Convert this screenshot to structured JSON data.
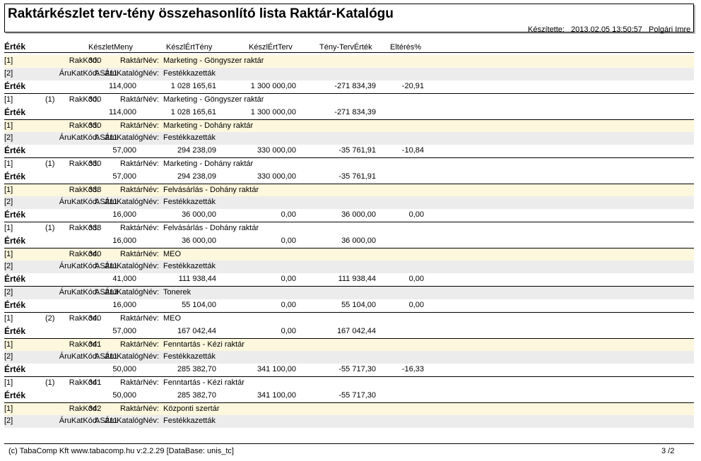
{
  "report": {
    "title": "Raktárkészlet terv-tény összehasonlító lista Raktár-Katalógu",
    "made_label": "Készítette:",
    "made_date": "2013.02.05 13:50:57",
    "made_user": "Polgári Imre"
  },
  "columns": {
    "ertek": "Érték",
    "keszlet_meny": "KészletMeny",
    "keszl_ert_teny": "KészlÉrtTény",
    "keszl_ert_terv": "KészlÉrtTerv",
    "teny_terv_ertek": "Tény-TervÉrték",
    "elteres": "Eltérés%"
  },
  "rows": [
    {
      "kind": "l1",
      "level": "[1]",
      "code_label": "RakKód:",
      "code": "300",
      "name_label": "RaktárNév:",
      "name": "Marketing - Göngyszer raktár"
    },
    {
      "kind": "l2",
      "level": "[2]",
      "code_label": "ÁruKatKód:",
      "code": "AS211",
      "name_label": "ÁruKatalógNév:",
      "name": "Festékkazetták"
    },
    {
      "kind": "val",
      "level": "Érték",
      "v1": "114,000",
      "v2": "1 028 165,61",
      "v3": "1 300 000,00",
      "v4": "-271 834,39",
      "v5": "-20,91"
    },
    {
      "kind": "sum1",
      "level": "[1]",
      "prefix": "(1)",
      "code_label": "RakKód:",
      "code": "300",
      "name_label": "RaktárNév:",
      "name": "Marketing - Göngyszer raktár"
    },
    {
      "kind": "val",
      "level": "Érték",
      "v1": "114,000",
      "v2": "1 028 165,61",
      "v3": "1 300 000,00",
      "v4": "-271 834,39",
      "v5": ""
    },
    {
      "kind": "l1",
      "level": "[1]",
      "code_label": "RakKód:",
      "code": "330",
      "name_label": "RaktárNév:",
      "name": "Marketing - Dohány raktár"
    },
    {
      "kind": "l2",
      "level": "[2]",
      "code_label": "ÁruKatKód:",
      "code": "AS211",
      "name_label": "ÁruKatalógNév:",
      "name": "Festékkazetták"
    },
    {
      "kind": "val",
      "level": "Érték",
      "v1": "57,000",
      "v2": "294 238,09",
      "v3": "330 000,00",
      "v4": "-35 761,91",
      "v5": "-10,84"
    },
    {
      "kind": "sum1",
      "level": "[1]",
      "prefix": "(1)",
      "code_label": "RakKód:",
      "code": "330",
      "name_label": "RaktárNév:",
      "name": "Marketing - Dohány raktár"
    },
    {
      "kind": "val",
      "level": "Érték",
      "v1": "57,000",
      "v2": "294 238,09",
      "v3": "330 000,00",
      "v4": "-35 761,91",
      "v5": ""
    },
    {
      "kind": "l1",
      "level": "[1]",
      "code_label": "RakKód:",
      "code": "338",
      "name_label": "RaktárNév:",
      "name": "Felvásárlás - Dohány raktár"
    },
    {
      "kind": "l2",
      "level": "[2]",
      "code_label": "ÁruKatKód:",
      "code": "AS211",
      "name_label": "ÁruKatalógNév:",
      "name": "Festékkazetták"
    },
    {
      "kind": "val",
      "level": "Érték",
      "v1": "16,000",
      "v2": "36 000,00",
      "v3": "0,00",
      "v4": "36 000,00",
      "v5": "0,00"
    },
    {
      "kind": "sum1",
      "level": "[1]",
      "prefix": "(1)",
      "code_label": "RakKód:",
      "code": "338",
      "name_label": "RaktárNév:",
      "name": "Felvásárlás - Dohány raktár"
    },
    {
      "kind": "val",
      "level": "Érték",
      "v1": "16,000",
      "v2": "36 000,00",
      "v3": "0,00",
      "v4": "36 000,00",
      "v5": ""
    },
    {
      "kind": "l1",
      "level": "[1]",
      "code_label": "RakKód:",
      "code": "340",
      "name_label": "RaktárNév:",
      "name": "MEO"
    },
    {
      "kind": "l2",
      "level": "[2]",
      "code_label": "ÁruKatKód:",
      "code": "AS211",
      "name_label": "ÁruKatalógNév:",
      "name": "Festékkazetták"
    },
    {
      "kind": "val",
      "level": "Érték",
      "v1": "41,000",
      "v2": "111 938,44",
      "v3": "0,00",
      "v4": "111 938,44",
      "v5": "0,00"
    },
    {
      "kind": "l2s",
      "level": "[2]",
      "code_label": "ÁruKatKód:",
      "code": "AS213",
      "name_label": "ÁruKatalógNév:",
      "name": "Tonerek"
    },
    {
      "kind": "val",
      "level": "Érték",
      "v1": "16,000",
      "v2": "55 104,00",
      "v3": "0,00",
      "v4": "55 104,00",
      "v5": "0,00"
    },
    {
      "kind": "sum1",
      "level": "[1]",
      "prefix": "(2)",
      "code_label": "RakKód:",
      "code": "340",
      "name_label": "RaktárNév:",
      "name": "MEO"
    },
    {
      "kind": "val",
      "level": "Érték",
      "v1": "57,000",
      "v2": "167 042,44",
      "v3": "0,00",
      "v4": "167 042,44",
      "v5": ""
    },
    {
      "kind": "l1",
      "level": "[1]",
      "code_label": "RakKód:",
      "code": "341",
      "name_label": "RaktárNév:",
      "name": "Fenntartás - Kézi raktár"
    },
    {
      "kind": "l2",
      "level": "[2]",
      "code_label": "ÁruKatKód:",
      "code": "AS211",
      "name_label": "ÁruKatalógNév:",
      "name": "Festékkazetták"
    },
    {
      "kind": "val",
      "level": "Érték",
      "v1": "50,000",
      "v2": "285 382,70",
      "v3": "341 100,00",
      "v4": "-55 717,30",
      "v5": "-16,33"
    },
    {
      "kind": "sum1",
      "level": "[1]",
      "prefix": "(1)",
      "code_label": "RakKód:",
      "code": "341",
      "name_label": "RaktárNév:",
      "name": "Fenntartás - Kézi raktár"
    },
    {
      "kind": "val",
      "level": "Érték",
      "v1": "50,000",
      "v2": "285 382,70",
      "v3": "341 100,00",
      "v4": "-55 717,30",
      "v5": ""
    },
    {
      "kind": "l1",
      "level": "[1]",
      "code_label": "RakKód:",
      "code": "342",
      "name_label": "RaktárNév:",
      "name": "Központi szertár"
    },
    {
      "kind": "l2",
      "level": "[2]",
      "code_label": "ÁruKatKód:",
      "code": "AS211",
      "name_label": "ÁruKatalógNév:",
      "name": "Festékkazetták"
    }
  ],
  "footer": {
    "text": "(c) TabaComp Kft  www.tabacomp.hu  v:2.2.29 [DataBase: unis_tc]",
    "page": "3  /2"
  }
}
